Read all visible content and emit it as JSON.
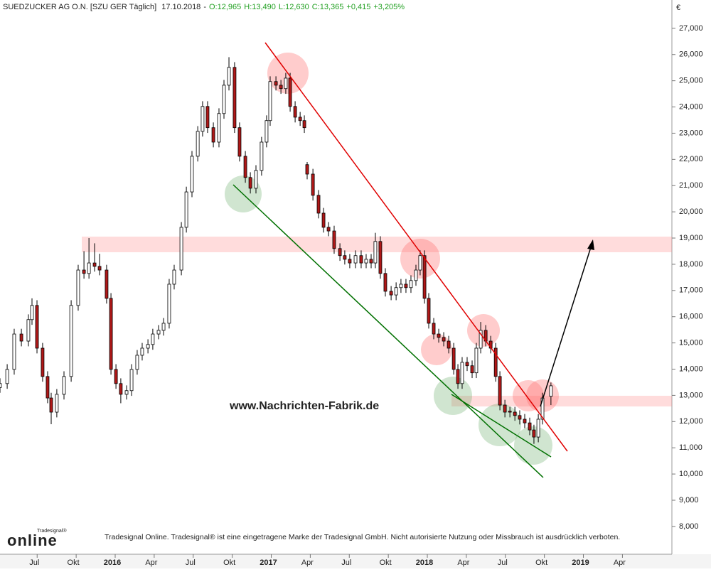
{
  "chart_data": {
    "type": "candlestick",
    "title": "SUEDZUCKER AG  O.N. [SZU GER  Täglich]",
    "date": "17.10.2018",
    "quote": [
      "O:12,965",
      "H:13,490",
      "L:12,630",
      "C:13,365",
      "+0,415",
      "+3,205%"
    ],
    "quote_color": "#22a022",
    "currency": "€",
    "watermark": "www.Nachrichten-Fabrik.de",
    "footer": "Tradesignal Online. Tradesignal® ist eine eingetragene Marke der Tradesignal GmbH. Nicht autorisierte Nutzung oder Missbrauch ist ausdrücklich verboten.",
    "logo": "online",
    "logo_brand": "Tradesignal®",
    "up_color": "#ffffff",
    "down_color": "#b01818",
    "xlim": [
      2015.262,
      2019.567
    ],
    "xticks": [
      {
        "value": 2015.5,
        "label": "Jul"
      },
      {
        "value": 2015.75,
        "label": "Okt"
      },
      2016,
      {
        "value": 2016.25,
        "label": "Apr"
      },
      {
        "value": 2016.5,
        "label": "Jul"
      },
      {
        "value": 2016.75,
        "label": "Okt"
      },
      2017,
      {
        "value": 2017.25,
        "label": "Apr"
      },
      {
        "value": 2017.5,
        "label": "Jul"
      },
      {
        "value": 2017.75,
        "label": "Okt"
      },
      2018,
      {
        "value": 2018.25,
        "label": "Apr"
      },
      {
        "value": 2018.5,
        "label": "Jul"
      },
      {
        "value": 2018.75,
        "label": "Okt"
      },
      2019,
      {
        "value": 2019.25,
        "label": "Apr"
      }
    ],
    "ylim": [
      6940,
      28080
    ],
    "yticks": [
      {
        "value": 8000,
        "label": "8,000"
      },
      {
        "value": 9000,
        "label": "9,000"
      },
      {
        "value": 10000,
        "label": "10,000"
      },
      {
        "value": 11000,
        "label": "11,000"
      },
      {
        "value": 12000,
        "label": "12,000"
      },
      {
        "value": 13000,
        "label": "13,000"
      },
      {
        "value": 14000,
        "label": "14,000"
      },
      {
        "value": 15000,
        "label": "15,000"
      },
      {
        "value": 16000,
        "label": "16,000"
      },
      {
        "value": 17000,
        "label": "17,000"
      },
      {
        "value": 18000,
        "label": "18,000"
      },
      {
        "value": 19000,
        "label": "19,000"
      },
      {
        "value": 20000,
        "label": "20,000"
      },
      {
        "value": 21000,
        "label": "21,000"
      },
      {
        "value": 22000,
        "label": "22,000"
      },
      {
        "value": 23000,
        "label": "23,000"
      },
      {
        "value": 24000,
        "label": "24,000"
      },
      {
        "value": 25000,
        "label": "25,000"
      },
      {
        "value": 26000,
        "label": "26,000"
      },
      {
        "value": 27000,
        "label": "27,000"
      }
    ],
    "x": [
      2015.262,
      2015.308,
      2015.353,
      2015.399,
      2015.444,
      2015.467,
      2015.499,
      2015.535,
      2015.567,
      2015.59,
      2015.626,
      2015.672,
      2015.718,
      2015.763,
      2015.8,
      2015.832,
      2015.868,
      2015.9,
      2015.945,
      2015.973,
      2016.005,
      2016.036,
      2016.073,
      2016.105,
      2016.141,
      2016.173,
      2016.21,
      2016.241,
      2016.278,
      2016.31,
      2016.346,
      2016.378,
      2016.424,
      2016.456,
      2016.492,
      2016.529,
      2016.56,
      2016.592,
      2016.629,
      2016.665,
      2016.697,
      2016.729,
      2016.765,
      2016.797,
      2016.834,
      2016.866,
      2016.902,
      2016.938,
      2016.97,
      2016.993,
      2017.03,
      2017.062,
      2017.093,
      2017.121,
      2017.153,
      2017.185,
      2017.212,
      2017.23,
      2017.267,
      2017.303,
      2017.335,
      2017.367,
      2017.403,
      2017.44,
      2017.471,
      2017.503,
      2017.54,
      2017.576,
      2017.608,
      2017.64,
      2017.667,
      2017.699,
      2017.731,
      2017.768,
      2017.8,
      2017.831,
      2017.863,
      2017.895,
      2017.927,
      2017.954,
      2017.982,
      2018.009,
      2018.041,
      2018.073,
      2018.105,
      2018.137,
      2018.169,
      2018.196,
      2018.223,
      2018.255,
      2018.287,
      2018.314,
      2018.342,
      2018.374,
      2018.406,
      2018.438,
      2018.465,
      2018.497,
      2018.529,
      2018.561,
      2018.592,
      2018.624,
      2018.656,
      2018.683,
      2018.711,
      2018.738,
      2018.792
    ],
    "open": [
      13300,
      13450,
      13990,
      15340,
      15070,
      15890,
      16430,
      14800,
      13720,
      12900,
      12360,
      13040,
      13720,
      16430,
      17780,
      17650,
      18050,
      17920,
      17780,
      16700,
      13990,
      13450,
      13040,
      13180,
      13990,
      14530,
      14800,
      14940,
      15340,
      15480,
      15750,
      17240,
      17780,
      19410,
      20760,
      22120,
      23070,
      24020,
      23210,
      22660,
      23750,
      24830,
      25510,
      23210,
      22120,
      21310,
      20900,
      21580,
      22660,
      23480,
      24970,
      24830,
      24700,
      25100,
      24020,
      23610,
      23480,
      21800,
      21440,
      20630,
      19950,
      19410,
      19270,
      18600,
      18330,
      18190,
      18050,
      18330,
      18050,
      18190,
      18050,
      18870,
      17650,
      16970,
      16830,
      17110,
      17240,
      17110,
      17380,
      17780,
      18330,
      16700,
      15750,
      15340,
      15210,
      15070,
      14800,
      13990,
      13450,
      14260,
      14130,
      13860,
      14800,
      15480,
      15070,
      14800,
      13720,
      12630,
      12400,
      12360,
      12230,
      12090,
      11950,
      11680,
      11410,
      12090,
      12965
    ],
    "high": [
      13650,
      14190,
      15540,
      15540,
      16090,
      16700,
      16630,
      15000,
      13920,
      13100,
      13240,
      13920,
      16630,
      17980,
      18500,
      19000,
      18800,
      18400,
      17980,
      16900,
      14190,
      13650,
      13380,
      14190,
      14730,
      15000,
      15140,
      15540,
      15680,
      15950,
      17440,
      17980,
      19610,
      20960,
      22320,
      23270,
      24220,
      24220,
      23410,
      23950,
      25030,
      25900,
      25710,
      23410,
      22320,
      21510,
      21780,
      22860,
      23680,
      25170,
      25170,
      25030,
      25300,
      25300,
      24220,
      23810,
      23680,
      21900,
      21640,
      20830,
      20150,
      19610,
      19470,
      18800,
      18530,
      18390,
      18530,
      18530,
      18390,
      18390,
      19200,
      19070,
      17850,
      17170,
      17310,
      17440,
      17440,
      17580,
      17980,
      18530,
      18530,
      16900,
      15950,
      15540,
      15410,
      15270,
      15000,
      14190,
      14460,
      14460,
      14330,
      15000,
      15800,
      15680,
      15270,
      15000,
      13920,
      12830,
      12560,
      12560,
      12430,
      12290,
      12150,
      11880,
      12290,
      13100,
      13490
    ],
    "low": [
      13100,
      13250,
      13790,
      14870,
      14870,
      15690,
      14600,
      13520,
      12700,
      11900,
      12160,
      12840,
      13520,
      16230,
      17450,
      17450,
      17720,
      17580,
      16500,
      13790,
      13250,
      12700,
      12840,
      12980,
      13790,
      14330,
      14600,
      14740,
      15140,
      15280,
      15550,
      17040,
      17580,
      19210,
      20560,
      21920,
      22870,
      23010,
      22460,
      22460,
      23550,
      24630,
      23010,
      21920,
      21110,
      20700,
      20700,
      21380,
      22460,
      23280,
      24630,
      24500,
      24500,
      23820,
      23410,
      23280,
      23010,
      21240,
      20430,
      19750,
      19210,
      19070,
      18400,
      18130,
      17990,
      17850,
      17850,
      17850,
      17850,
      17850,
      17850,
      17450,
      16770,
      16630,
      16630,
      16910,
      16910,
      16910,
      17180,
      17580,
      16500,
      15550,
      15140,
      15010,
      14870,
      14600,
      13790,
      13250,
      13250,
      13930,
      13660,
      13660,
      14600,
      14870,
      14600,
      13520,
      12430,
      12160,
      12160,
      12030,
      11890,
      11750,
      11480,
      11150,
      11210,
      11890,
      12630
    ],
    "close": [
      13450,
      13990,
      15340,
      15070,
      15890,
      16430,
      14800,
      13720,
      12900,
      12360,
      13040,
      13720,
      16430,
      17780,
      17650,
      18050,
      17920,
      17780,
      16700,
      13990,
      13450,
      13040,
      13180,
      13990,
      14530,
      14800,
      14940,
      15340,
      15480,
      15750,
      17240,
      17780,
      19410,
      20760,
      22120,
      23070,
      24020,
      23210,
      22660,
      23750,
      24830,
      25510,
      23210,
      22120,
      21310,
      20900,
      21580,
      22660,
      23480,
      24970,
      24830,
      24700,
      25100,
      24020,
      23610,
      23480,
      23210,
      21440,
      20630,
      19950,
      19410,
      19270,
      18600,
      18330,
      18190,
      18050,
      18330,
      18050,
      18190,
      18050,
      18870,
      17650,
      16970,
      16830,
      17110,
      17240,
      17110,
      17380,
      17780,
      18330,
      16700,
      15750,
      15340,
      15210,
      15070,
      14800,
      13990,
      13450,
      14260,
      14130,
      13860,
      14800,
      15480,
      15070,
      14800,
      13720,
      12630,
      12360,
      12360,
      12230,
      12090,
      11950,
      11680,
      11410,
      12090,
      12900,
      13365
    ]
  }
}
